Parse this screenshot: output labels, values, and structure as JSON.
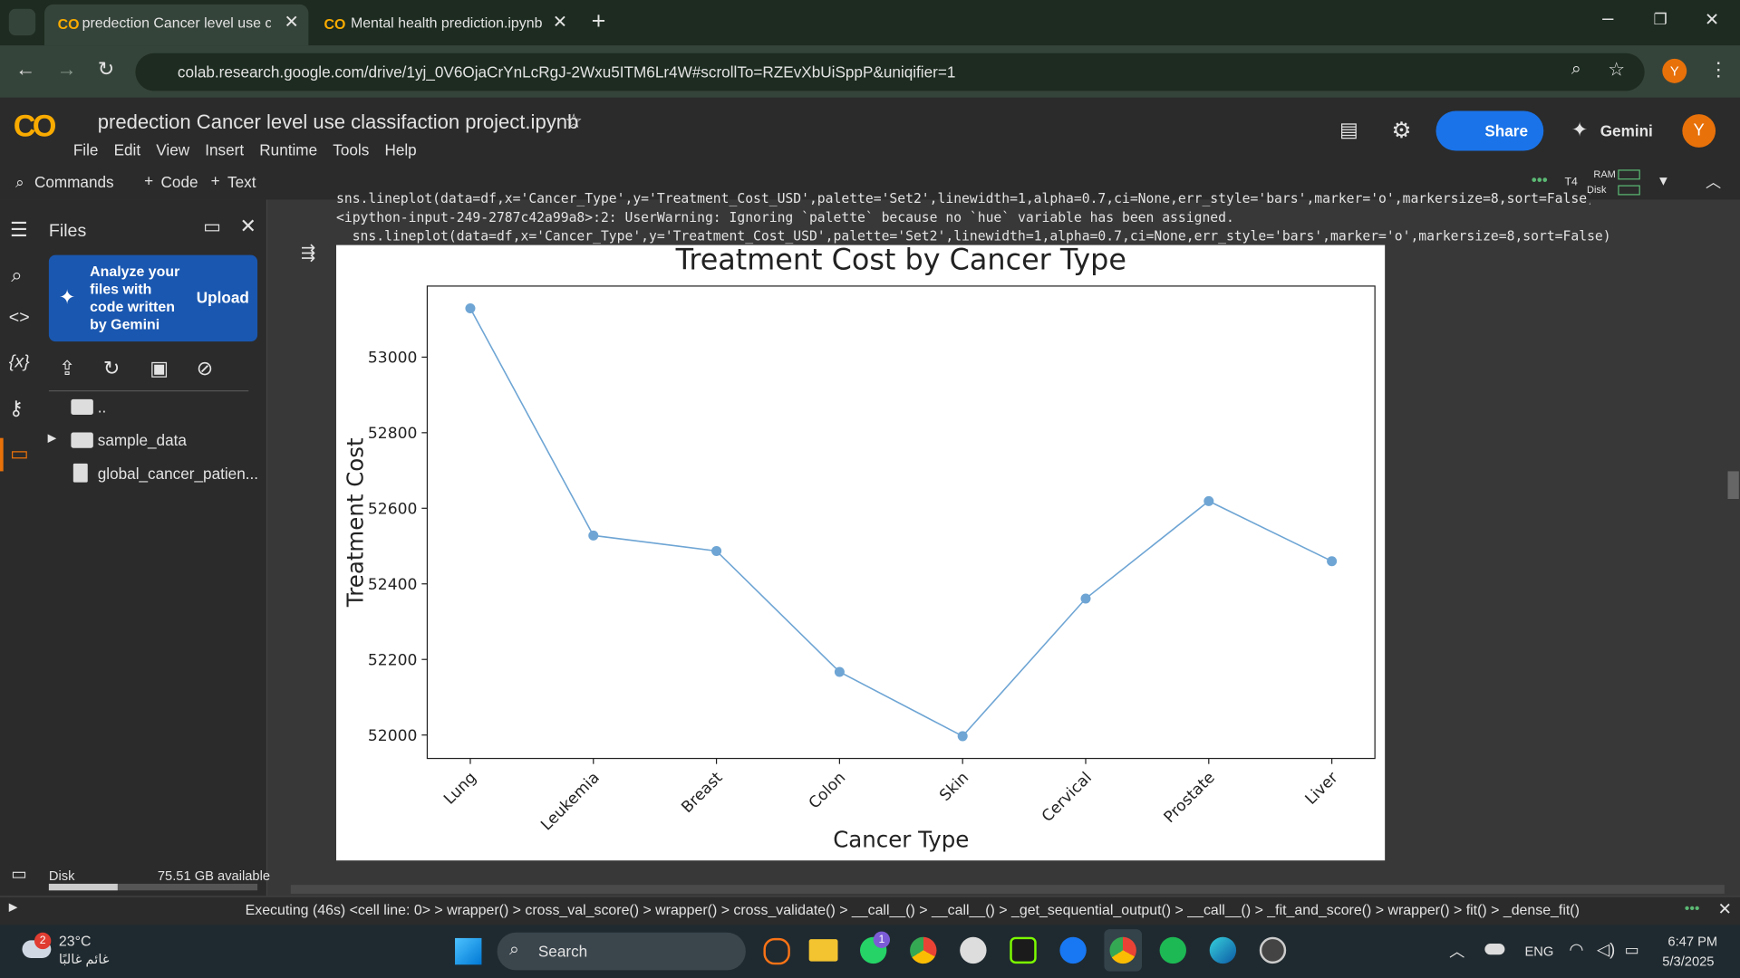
{
  "browser": {
    "tabs": [
      "predection Cancer level use clas",
      "Mental health prediction.ipynb"
    ],
    "url": "colab.research.google.com/drive/1yj_0V6OjaCrYnLcRgJ-2Wxu5ITM6Lr4W#scrollTo=RZEvXbUiSppP&uniqifier=1",
    "profile": "Y"
  },
  "notebook": {
    "title": "predection Cancer level use classifaction project.ipynb",
    "menu": [
      "File",
      "Edit",
      "View",
      "Insert",
      "Runtime",
      "Tools",
      "Help"
    ],
    "share": "Share",
    "gemini": "Gemini",
    "avatar": "Y",
    "commands": "Commands",
    "add_code": "Code",
    "add_text": "Text",
    "runtime": "T4",
    "ram": "RAM",
    "disk": "Disk"
  },
  "sidebar": {
    "title": "Files",
    "promo": "Analyze your files with code written by Gemini",
    "upload": "Upload",
    "items": [
      "..",
      "sample_data",
      "global_cancer_patien..."
    ],
    "disk_label": "Disk",
    "disk_free": "75.51 GB available"
  },
  "output": {
    "lines": [
      "  sns.lineplot(data=df,x='Cancer_Type',y='Treatment_Cost_USD',palette='Set2',linewidth=1,alpha=0.7,ci=None,err_style='bars',marker='o',markersize=8,sort=False)",
      "<ipython-input-249-2787c42a99a8>:2: UserWarning: Ignoring `palette` because no `hue` variable has been assigned.",
      "  sns.lineplot(data=df,x='Cancer_Type',y='Treatment_Cost_USD',palette='Set2',linewidth=1,alpha=0.7,ci=None,err_style='bars',marker='o',markersize=8,sort=False)"
    ]
  },
  "chart_data": {
    "type": "line",
    "title": "Treatment Cost by Cancer Type",
    "x_label": "Cancer Type",
    "y_label": "Treatment Cost",
    "categories": [
      "Lung",
      "Leukemia",
      "Breast",
      "Colon",
      "Skin",
      "Cervical",
      "Prostate",
      "Liver"
    ],
    "values": [
      53129,
      52528,
      52487,
      52167,
      51997,
      52361,
      52619,
      52460
    ],
    "color": "#6ea5d4",
    "ylim": [
      51938,
      53188
    ],
    "yticks": [
      52000,
      52200,
      52400,
      52600,
      52800,
      53000
    ]
  },
  "status": "Executing (46s) <cell line: 0> > wrapper() > cross_val_score() > wrapper() > cross_validate() > __call__() > __call__() > _get_sequential_output() > __call__() > _fit_and_score() > wrapper() > fit() > _dense_fit()",
  "taskbar": {
    "weather_badge": "2",
    "temperature": "23°C",
    "condition": "غائم غالبًا",
    "search": "Search",
    "whatsapp_badge": "1",
    "language": "ENG",
    "time": "6:47 PM",
    "date": "5/3/2025"
  }
}
